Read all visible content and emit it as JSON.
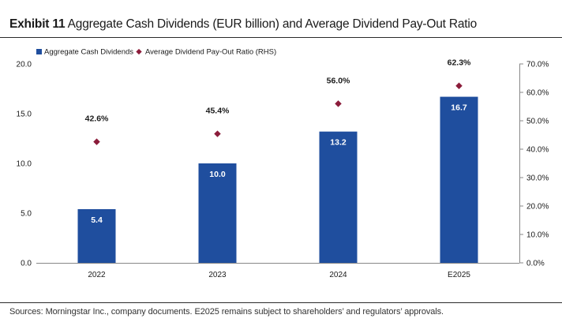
{
  "header": {
    "exhibit": "Exhibit 11",
    "title": "Aggregate Cash Dividends (EUR billion) and Average Dividend Pay-Out Ratio"
  },
  "footer": {
    "source": "Sources: Morningstar Inc., company documents. E2025 remains subject to shareholders’ and regulators’ approvals."
  },
  "colors": {
    "bar": "#1f4e9e",
    "marker": "#8b1c3a",
    "axis": "#888888",
    "text": "#1a1a1a"
  },
  "chart_data": {
    "type": "bar",
    "categories": [
      "2022",
      "2023",
      "2024",
      "E2025"
    ],
    "series": [
      {
        "name": "Aggregate Cash Dividends",
        "kind": "bar",
        "axis": "left",
        "values": [
          5.4,
          10.0,
          13.2,
          16.7
        ],
        "labels": [
          "5.4",
          "10.0",
          "13.2",
          "16.7"
        ]
      },
      {
        "name": "Average Dividend Pay-Out Ratio (RHS)",
        "kind": "scatter",
        "axis": "right",
        "values": [
          42.6,
          45.4,
          56.0,
          62.3
        ],
        "labels": [
          "42.6%",
          "45.4%",
          "56.0%",
          "62.3%"
        ]
      }
    ],
    "ylim": [
      0,
      20
    ],
    "y_ticks": [
      "0.0",
      "5.0",
      "10.0",
      "15.0",
      "20.0"
    ],
    "y2lim": [
      0,
      70
    ],
    "y2_ticks": [
      "0.0%",
      "10.0%",
      "20.0%",
      "30.0%",
      "40.0%",
      "50.0%",
      "60.0%",
      "70.0%"
    ],
    "grid": false,
    "legend_position": "top-left"
  }
}
